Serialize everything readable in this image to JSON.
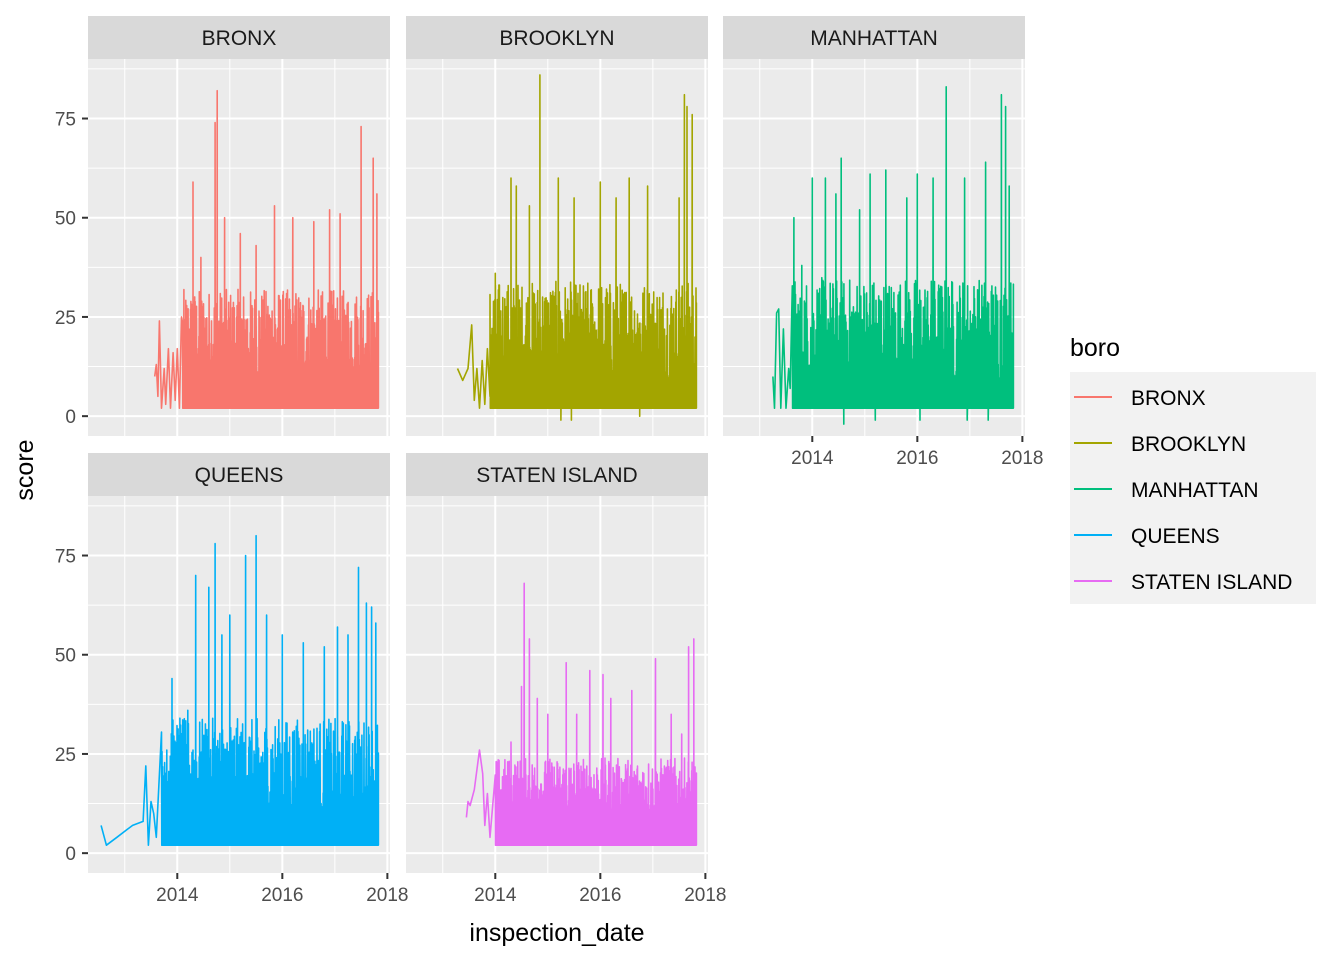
{
  "chart_data": {
    "type": "line",
    "layout": "faceted line chart (facet_wrap, 3 columns)",
    "xlabel": "inspection_date",
    "ylabel": "score",
    "xlim": [
      2012.3,
      2018.05
    ],
    "ylim": [
      -5,
      90
    ],
    "x_ticks": [
      2014,
      2016,
      2018
    ],
    "x_minor_ticks": [
      2013,
      2015,
      2017
    ],
    "y_ticks": [
      0,
      25,
      50,
      75
    ],
    "y_minor_ticks": [
      12.5,
      37.5,
      62.5,
      87.5
    ],
    "grid": true,
    "legend": {
      "title": "boro",
      "placement": "right",
      "entries": [
        "BRONX",
        "BROOKLYN",
        "MANHATTAN",
        "QUEENS",
        "STATEN ISLAND"
      ]
    },
    "facets": [
      {
        "name": "BRONX",
        "color": "#F8766D",
        "x_range": [
          2013.57,
          2017.83
        ],
        "dense_start": 2014.1,
        "baseline": 2,
        "typical_max": 30,
        "early": [
          [
            2013.57,
            10
          ],
          [
            2013.6,
            13
          ],
          [
            2013.63,
            5
          ],
          [
            2013.66,
            24
          ],
          [
            2013.7,
            2
          ],
          [
            2013.75,
            12
          ],
          [
            2013.78,
            3
          ],
          [
            2013.83,
            17
          ],
          [
            2013.87,
            2
          ],
          [
            2013.92,
            16
          ],
          [
            2013.96,
            4
          ],
          [
            2014.0,
            17
          ],
          [
            2014.04,
            2
          ],
          [
            2014.08,
            25
          ]
        ],
        "spikes": [
          [
            2014.3,
            59
          ],
          [
            2014.45,
            40
          ],
          [
            2014.72,
            74
          ],
          [
            2014.76,
            82
          ],
          [
            2014.9,
            50
          ],
          [
            2015.2,
            46
          ],
          [
            2015.5,
            43
          ],
          [
            2015.85,
            53
          ],
          [
            2016.2,
            50
          ],
          [
            2016.6,
            49
          ],
          [
            2016.9,
            52
          ],
          [
            2017.1,
            51
          ],
          [
            2017.5,
            73
          ],
          [
            2017.73,
            65
          ],
          [
            2017.8,
            56
          ]
        ],
        "negatives": []
      },
      {
        "name": "BROOKLYN",
        "color": "#A3A500",
        "x_range": [
          2013.28,
          2017.83
        ],
        "dense_start": 2013.9,
        "baseline": 2,
        "typical_max": 32,
        "early": [
          [
            2013.28,
            12
          ],
          [
            2013.38,
            9
          ],
          [
            2013.48,
            12
          ],
          [
            2013.55,
            23
          ],
          [
            2013.6,
            4
          ],
          [
            2013.65,
            12
          ],
          [
            2013.7,
            2
          ],
          [
            2013.75,
            14
          ],
          [
            2013.8,
            3
          ],
          [
            2013.85,
            17
          ],
          [
            2013.9,
            5
          ]
        ],
        "spikes": [
          [
            2014.0,
            36
          ],
          [
            2014.3,
            60
          ],
          [
            2014.4,
            58
          ],
          [
            2014.65,
            53
          ],
          [
            2014.85,
            86
          ],
          [
            2015.2,
            60
          ],
          [
            2015.5,
            55
          ],
          [
            2016.0,
            59
          ],
          [
            2016.3,
            55
          ],
          [
            2016.55,
            60
          ],
          [
            2016.9,
            58
          ],
          [
            2017.5,
            55
          ],
          [
            2017.6,
            81
          ],
          [
            2017.65,
            78
          ],
          [
            2017.75,
            76
          ]
        ],
        "negatives": [
          [
            2015.25,
            -1
          ],
          [
            2015.45,
            -1
          ],
          [
            2016.75,
            0
          ]
        ]
      },
      {
        "name": "MANHATTAN",
        "color": "#00BF7D",
        "x_range": [
          2013.25,
          2017.83
        ],
        "dense_start": 2013.62,
        "baseline": 2,
        "typical_max": 33,
        "early": [
          [
            2013.25,
            10
          ],
          [
            2013.28,
            2
          ],
          [
            2013.32,
            26
          ],
          [
            2013.36,
            27
          ],
          [
            2013.4,
            2
          ],
          [
            2013.45,
            22
          ],
          [
            2013.5,
            2
          ],
          [
            2013.55,
            12
          ],
          [
            2013.58,
            7
          ]
        ],
        "spikes": [
          [
            2013.65,
            50
          ],
          [
            2013.8,
            38
          ],
          [
            2014.0,
            60
          ],
          [
            2014.25,
            60
          ],
          [
            2014.45,
            56
          ],
          [
            2014.55,
            65
          ],
          [
            2014.9,
            52
          ],
          [
            2015.1,
            61
          ],
          [
            2015.4,
            62
          ],
          [
            2015.8,
            55
          ],
          [
            2016.0,
            61
          ],
          [
            2016.3,
            60
          ],
          [
            2016.55,
            83
          ],
          [
            2016.9,
            60
          ],
          [
            2017.3,
            64
          ],
          [
            2017.6,
            81
          ],
          [
            2017.68,
            78
          ],
          [
            2017.75,
            58
          ]
        ],
        "negatives": [
          [
            2014.6,
            -2
          ],
          [
            2015.2,
            -1
          ],
          [
            2016.05,
            -1
          ],
          [
            2016.95,
            -1
          ],
          [
            2017.35,
            -1
          ]
        ]
      },
      {
        "name": "QUEENS",
        "color": "#00B0F6",
        "x_range": [
          2012.55,
          2017.83
        ],
        "dense_start": 2013.7,
        "baseline": 2,
        "typical_max": 32,
        "early": [
          [
            2012.55,
            7
          ],
          [
            2012.65,
            2
          ],
          [
            2012.85,
            4
          ],
          [
            2013.05,
            6
          ],
          [
            2013.15,
            7
          ],
          [
            2013.35,
            8
          ],
          [
            2013.4,
            22
          ],
          [
            2013.45,
            2
          ],
          [
            2013.5,
            13
          ],
          [
            2013.55,
            10
          ],
          [
            2013.6,
            4
          ]
        ],
        "spikes": [
          [
            2013.8,
            26
          ],
          [
            2013.9,
            44
          ],
          [
            2014.05,
            34
          ],
          [
            2014.2,
            36
          ],
          [
            2014.35,
            70
          ],
          [
            2014.6,
            67
          ],
          [
            2014.72,
            78
          ],
          [
            2014.85,
            55
          ],
          [
            2015.0,
            60
          ],
          [
            2015.3,
            75
          ],
          [
            2015.5,
            80
          ],
          [
            2015.7,
            60
          ],
          [
            2016.0,
            55
          ],
          [
            2016.4,
            53
          ],
          [
            2016.8,
            52
          ],
          [
            2017.05,
            57
          ],
          [
            2017.25,
            55
          ],
          [
            2017.45,
            72
          ],
          [
            2017.6,
            63
          ],
          [
            2017.7,
            62
          ],
          [
            2017.78,
            58
          ]
        ],
        "negatives": []
      },
      {
        "name": "STATEN ISLAND",
        "color": "#E76BF3",
        "x_range": [
          2013.45,
          2017.83
        ],
        "dense_start": 2014.0,
        "baseline": 2,
        "typical_max": 22,
        "early": [
          [
            2013.45,
            9
          ],
          [
            2013.48,
            13
          ],
          [
            2013.52,
            12
          ],
          [
            2013.6,
            16
          ],
          [
            2013.7,
            26
          ],
          [
            2013.76,
            20
          ],
          [
            2013.8,
            7
          ],
          [
            2013.85,
            15
          ],
          [
            2013.9,
            4
          ],
          [
            2013.95,
            12
          ]
        ],
        "spikes": [
          [
            2014.3,
            28
          ],
          [
            2014.5,
            42
          ],
          [
            2014.55,
            68
          ],
          [
            2014.65,
            54
          ],
          [
            2014.8,
            39
          ],
          [
            2015.0,
            35
          ],
          [
            2015.35,
            48
          ],
          [
            2015.55,
            35
          ],
          [
            2015.8,
            46
          ],
          [
            2016.05,
            45
          ],
          [
            2016.2,
            39
          ],
          [
            2016.6,
            41
          ],
          [
            2017.05,
            49
          ],
          [
            2017.35,
            35
          ],
          [
            2017.55,
            30
          ],
          [
            2017.68,
            52
          ],
          [
            2017.78,
            54
          ]
        ],
        "negatives": []
      }
    ]
  }
}
